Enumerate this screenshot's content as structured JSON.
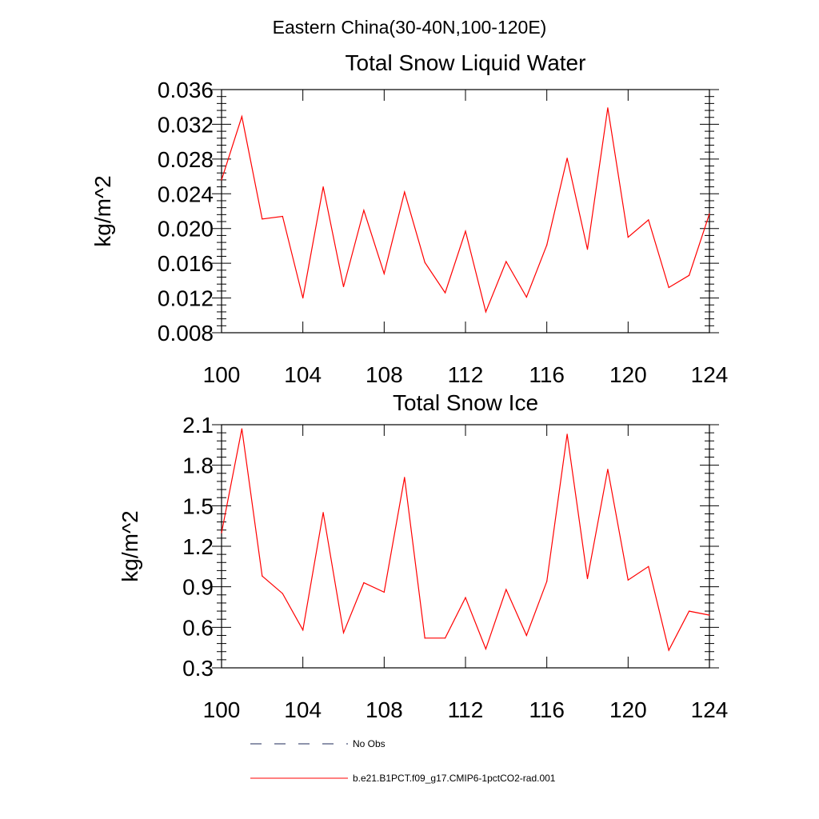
{
  "figure_title": "Eastern China(30-40N,100-120E)",
  "legend": {
    "entries": [
      {
        "label": "No Obs",
        "color": "#1e2a5a",
        "style": "dashed"
      },
      {
        "label": "b.e21.B1PCT.f09_g17.CMIP6-1pctCO2-rad.001",
        "color": "#ff0000",
        "style": "solid"
      }
    ]
  },
  "chart_data": [
    {
      "type": "line",
      "title": "Total Snow Liquid Water",
      "xlabel": "",
      "ylabel": "kg/m^2",
      "xlim": [
        100,
        124
      ],
      "ylim": [
        0.008,
        0.036
      ],
      "xticks": [
        100,
        104,
        108,
        112,
        116,
        120,
        124
      ],
      "yticks": [
        0.008,
        0.012,
        0.016,
        0.02,
        0.024,
        0.028,
        0.032,
        0.036
      ],
      "ytick_labels": [
        "0.008",
        "0.012",
        "0.016",
        "0.020",
        "0.024",
        "0.028",
        "0.032",
        "0.036"
      ],
      "grid": false,
      "x": [
        100,
        101,
        102,
        103,
        104,
        105,
        106,
        107,
        108,
        109,
        110,
        111,
        112,
        113,
        114,
        115,
        116,
        117,
        118,
        119,
        120,
        121,
        122,
        123,
        124
      ],
      "series": [
        {
          "color": "#ff0000",
          "values": [
            0.0256,
            0.0329,
            0.0211,
            0.0214,
            0.012,
            0.0248,
            0.0133,
            0.0221,
            0.0148,
            0.0242,
            0.0161,
            0.0126,
            0.0197,
            0.0104,
            0.0162,
            0.0121,
            0.0181,
            0.0281,
            0.0176,
            0.0339,
            0.019,
            0.021,
            0.0132,
            0.0146,
            0.0217
          ]
        }
      ]
    },
    {
      "type": "line",
      "title": "Total Snow Ice",
      "xlabel": "",
      "ylabel": "kg/m^2",
      "xlim": [
        100,
        124
      ],
      "ylim": [
        0.3,
        2.1
      ],
      "xticks": [
        100,
        104,
        108,
        112,
        116,
        120,
        124
      ],
      "yticks": [
        0.3,
        0.6,
        0.9,
        1.2,
        1.5,
        1.8,
        2.1
      ],
      "ytick_labels": [
        "0.3",
        "0.6",
        "0.9",
        "1.2",
        "1.5",
        "1.8",
        "2.1"
      ],
      "grid": false,
      "x": [
        100,
        101,
        102,
        103,
        104,
        105,
        106,
        107,
        108,
        109,
        110,
        111,
        112,
        113,
        114,
        115,
        116,
        117,
        118,
        119,
        120,
        121,
        122,
        123,
        124
      ],
      "series": [
        {
          "color": "#ff0000",
          "values": [
            1.3,
            2.07,
            0.98,
            0.85,
            0.58,
            1.45,
            0.56,
            0.93,
            0.86,
            1.71,
            0.52,
            0.52,
            0.82,
            0.44,
            0.88,
            0.54,
            0.94,
            2.03,
            0.96,
            1.77,
            0.95,
            1.05,
            0.43,
            0.72,
            0.69
          ]
        }
      ]
    }
  ]
}
